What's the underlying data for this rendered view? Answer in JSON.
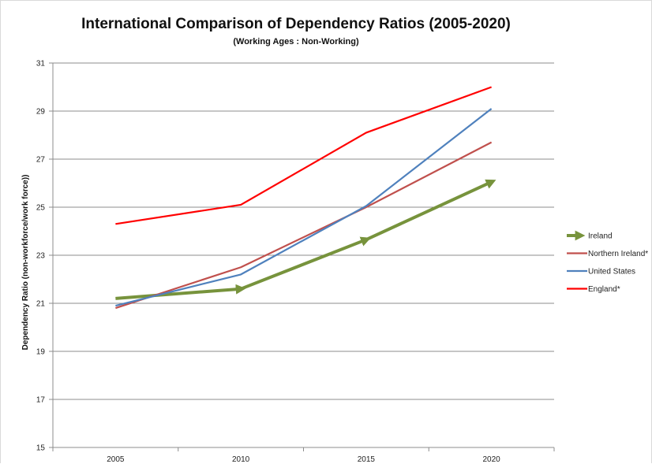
{
  "chart_data": {
    "type": "line",
    "title": "International Comparison of Dependency Ratios  (2005-2020)",
    "subtitle": "(Working Ages : Non-Working)",
    "xlabel": "",
    "ylabel": "Dependency Ratio (non-workforce/work force))",
    "categories": [
      "2005",
      "2010",
      "2015",
      "2020"
    ],
    "ylim": [
      15,
      31
    ],
    "yticks": [
      "15",
      "17",
      "19",
      "21",
      "23",
      "25",
      "27",
      "29",
      "31"
    ],
    "grid": true,
    "legend_position": "right",
    "series": [
      {
        "name": "Ireland",
        "values": [
          21.2,
          21.6,
          23.65,
          26.05
        ],
        "color": "#77933c",
        "arrows": true
      },
      {
        "name": "Northern Ireland*",
        "values": [
          20.8,
          22.5,
          25.0,
          27.7
        ],
        "color": "#c0504d",
        "arrows": false
      },
      {
        "name": "United States",
        "values": [
          20.9,
          22.2,
          25.05,
          29.1
        ],
        "color": "#4f81bd",
        "arrows": false
      },
      {
        "name": "England*",
        "values": [
          24.3,
          25.1,
          28.1,
          30.0
        ],
        "color": "#ff0000",
        "arrows": false
      }
    ]
  }
}
